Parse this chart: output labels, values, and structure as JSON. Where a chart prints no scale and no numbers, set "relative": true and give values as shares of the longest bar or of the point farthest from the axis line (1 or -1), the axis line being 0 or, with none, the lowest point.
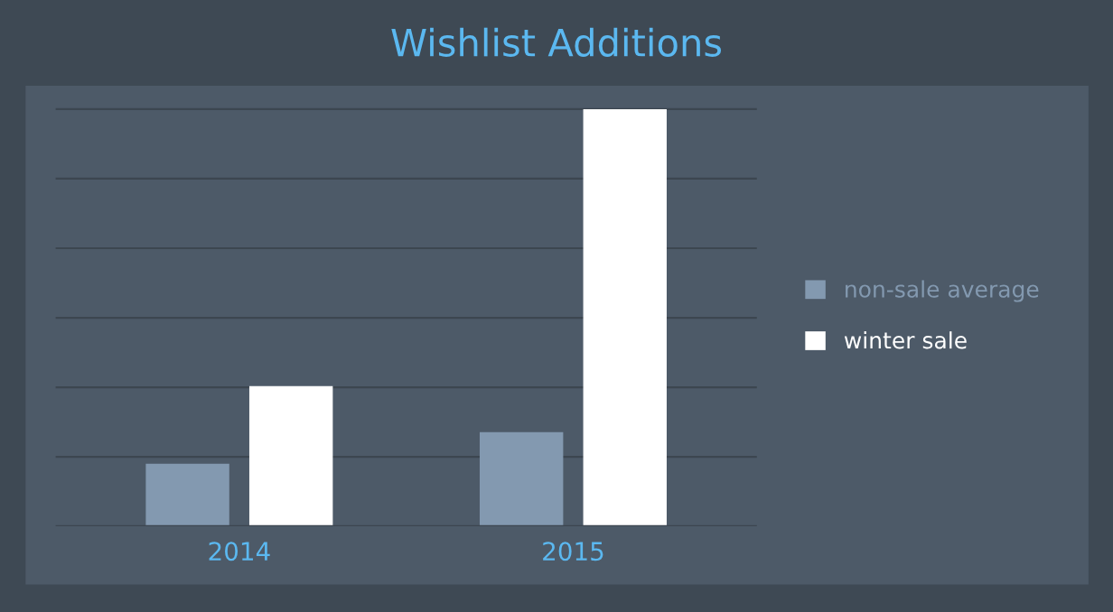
{
  "chart_data": {
    "type": "bar",
    "title": "Wishlist Additions",
    "categories": [
      "2014",
      "2015"
    ],
    "series": [
      {
        "name": "non-sale average",
        "color": "#8399b0",
        "values": [
          0.15,
          0.226
        ]
      },
      {
        "name": "winter sale",
        "color": "#ffffff",
        "values": [
          0.336,
          1
        ]
      }
    ],
    "relative": true,
    "grid": "y",
    "legend": "right"
  }
}
